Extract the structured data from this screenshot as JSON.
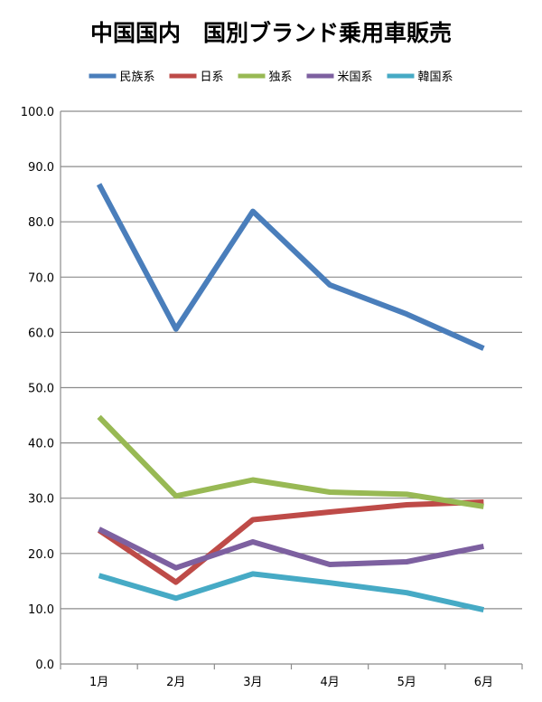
{
  "chart_data": {
    "type": "line",
    "title": "中国国内　国別ブランド乗用車販売",
    "xlabel": "",
    "ylabel": "",
    "categories": [
      "1月",
      "2月",
      "3月",
      "4月",
      "5月",
      "6月"
    ],
    "ylim": [
      0,
      100
    ],
    "yticks": [
      "0.0",
      "10.0",
      "20.0",
      "30.0",
      "40.0",
      "50.0",
      "60.0",
      "70.0",
      "80.0",
      "90.0",
      "100.0"
    ],
    "legend_position": "top",
    "grid": true,
    "series": [
      {
        "name": "民族系",
        "color": "#4a7ebb",
        "values": [
          86.8,
          60.6,
          81.9,
          68.6,
          63.3,
          57.1
        ]
      },
      {
        "name": "日系",
        "color": "#be4b48",
        "values": [
          24.2,
          14.8,
          26.1,
          27.5,
          28.8,
          29.3
        ]
      },
      {
        "name": "独系",
        "color": "#98b954",
        "values": [
          44.7,
          30.4,
          33.3,
          31.1,
          30.7,
          28.5
        ]
      },
      {
        "name": "米国系",
        "color": "#7d60a0",
        "values": [
          24.4,
          17.4,
          22.1,
          18.0,
          18.5,
          21.3
        ]
      },
      {
        "name": "韓国系",
        "color": "#46aac5",
        "values": [
          16.0,
          11.9,
          16.3,
          14.7,
          12.9,
          9.8
        ]
      }
    ]
  }
}
